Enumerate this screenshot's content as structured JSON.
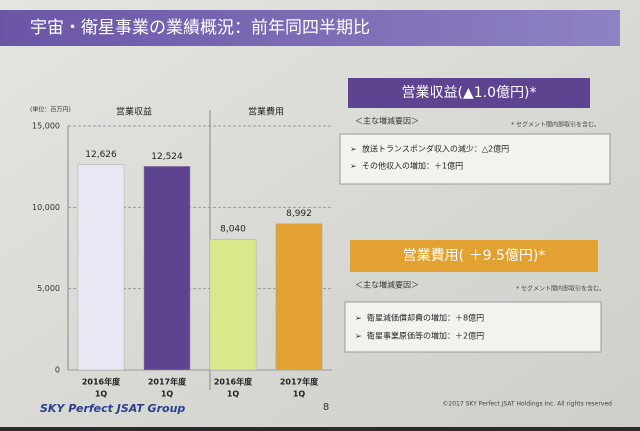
{
  "header": {
    "title": "宇宙・衛星事業の業績概況：前年同四半期比"
  },
  "chart_data": {
    "type": "bar",
    "unit": "(単位：百万円)",
    "ylim": [
      0,
      15000
    ],
    "yticks": [
      0,
      {
        "value": 5000,
        "label": "5,000"
      },
      {
        "value": 10000,
        "label": "10,000"
      },
      {
        "value": 15000,
        "label": "15,000"
      }
    ],
    "grid": true,
    "groups": [
      {
        "name": "営業収益",
        "categories": [
          [
            "2016年度",
            "1Q"
          ],
          [
            "2017年度",
            "1Q"
          ]
        ],
        "values": [
          12626,
          12524
        ],
        "value_labels": [
          "12,626",
          "12,524"
        ],
        "colors": [
          "#e9e7f3",
          "#5e4390"
        ]
      },
      {
        "name": "営業費用",
        "categories": [
          [
            "2016年度",
            "1Q"
          ],
          [
            "2017年度",
            "1Q"
          ]
        ],
        "values": [
          8040,
          8992
        ],
        "value_labels": [
          "8,040",
          "8,992"
        ],
        "colors": [
          "#d8e98c",
          "#e3a132"
        ]
      }
    ]
  },
  "panels": [
    {
      "heading": "営業収益(▲1.0億円)*",
      "subheading": "＜主な増減要因＞",
      "note": "* セグメント間内部取引を含む。",
      "items": [
        "放送トランスポンダ収入の減少：△2億円",
        "その他収入の増加：＋1億円"
      ]
    },
    {
      "heading": "営業費用( ＋9.5億円)*",
      "subheading": "＜主な増減要因＞",
      "note": "* セグメント間内部取引を含む。",
      "items": [
        "衛星減価償却費の増加：＋8億円",
        "衛星事業原価等の増加：＋2億円"
      ]
    }
  ],
  "footer": {
    "logo": "SKY Perfect JSAT Group",
    "page": "8",
    "copyright": "©2017 SKY Perfect JSAT Holdings Inc. All rights reserved"
  }
}
